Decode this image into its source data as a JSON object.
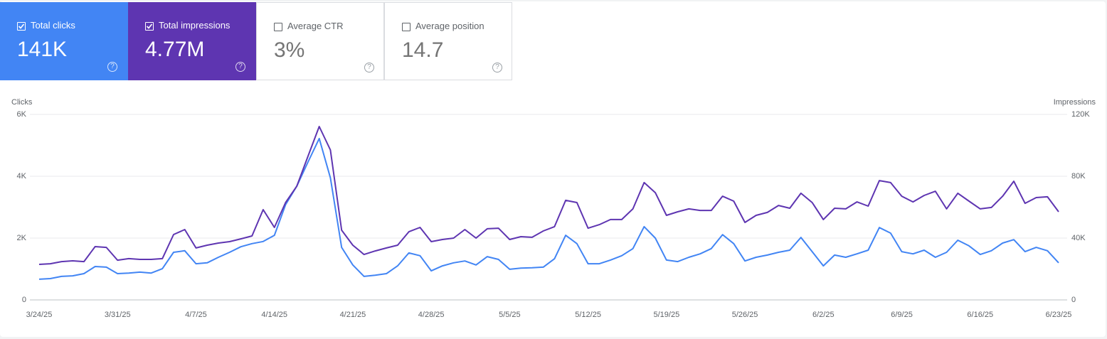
{
  "metrics": [
    {
      "label": "Total clicks",
      "value": "141K",
      "checked": true,
      "color": "#4285f4"
    },
    {
      "label": "Total impressions",
      "value": "4.77M",
      "checked": true,
      "color": "#5e35b1"
    },
    {
      "label": "Average CTR",
      "value": "3%",
      "checked": false,
      "color": "#ffffff"
    },
    {
      "label": "Average position",
      "value": "14.7",
      "checked": false,
      "color": "#ffffff"
    }
  ],
  "chart_data": {
    "type": "line",
    "y_label": "Clicks",
    "y2_label": "Impressions",
    "categories": [
      "3/24/25",
      null,
      null,
      null,
      null,
      null,
      null,
      "3/31/25",
      null,
      null,
      null,
      null,
      null,
      null,
      "4/7/25",
      null,
      null,
      null,
      null,
      null,
      null,
      "4/14/25",
      null,
      null,
      null,
      null,
      null,
      null,
      "4/21/25",
      null,
      null,
      null,
      null,
      null,
      null,
      "4/28/25",
      null,
      null,
      null,
      null,
      null,
      null,
      "5/5/25",
      null,
      null,
      null,
      null,
      null,
      null,
      "5/12/25",
      null,
      null,
      null,
      null,
      null,
      null,
      "5/19/25",
      null,
      null,
      null,
      null,
      null,
      null,
      "5/26/25",
      null,
      null,
      null,
      null,
      null,
      null,
      "6/2/25",
      null,
      null,
      null,
      null,
      null,
      null,
      "6/9/25",
      null,
      null,
      null,
      null,
      null,
      null,
      "6/16/25",
      null,
      null,
      null,
      null,
      null,
      null,
      "6/23/25"
    ],
    "series": [
      {
        "color": "#4285f4",
        "axis": "y",
        "values": [
          670,
          690,
          760,
          780,
          850,
          1080,
          1060,
          850,
          870,
          900,
          870,
          1010,
          1540,
          1590,
          1170,
          1200,
          1380,
          1540,
          1720,
          1820,
          1890,
          2090,
          3080,
          3680,
          4460,
          5220,
          3950,
          1700,
          1130,
          760,
          800,
          850,
          1100,
          1520,
          1430,
          940,
          1100,
          1200,
          1260,
          1130,
          1400,
          1310,
          990,
          1030,
          1040,
          1060,
          1330,
          2090,
          1820,
          1170,
          1170,
          1290,
          1430,
          1660,
          2370,
          2000,
          1290,
          1240,
          1380,
          1490,
          1660,
          2110,
          1820,
          1260,
          1380,
          1450,
          1540,
          1610,
          2020,
          1560,
          1100,
          1450,
          1380,
          1490,
          1610,
          2340,
          2160,
          1560,
          1490,
          1610,
          1380,
          1540,
          1930,
          1750,
          1470,
          1590,
          1840,
          1950,
          1560,
          1700,
          1590,
          1200
        ]
      },
      {
        "color": "#5e35b1",
        "axis": "y2",
        "values": [
          23000,
          23400,
          24800,
          25300,
          24800,
          34500,
          34000,
          25700,
          26700,
          26200,
          26200,
          26700,
          42300,
          45500,
          33600,
          35400,
          36800,
          37700,
          39500,
          41400,
          58400,
          46900,
          63000,
          73600,
          92900,
          112200,
          97000,
          45100,
          35400,
          29400,
          31700,
          33600,
          35400,
          44100,
          46900,
          37700,
          39100,
          40000,
          45500,
          40000,
          46000,
          46400,
          39100,
          40900,
          40500,
          44600,
          47400,
          64400,
          63000,
          46400,
          48700,
          52000,
          52000,
          58900,
          75900,
          69400,
          54700,
          57000,
          58900,
          57900,
          57900,
          67100,
          63900,
          50100,
          54700,
          56600,
          61100,
          59300,
          69000,
          63000,
          52000,
          59300,
          58900,
          63400,
          60700,
          77200,
          75900,
          67100,
          63400,
          67600,
          70300,
          58900,
          69000,
          63900,
          58900,
          59800,
          67100,
          76800,
          62500,
          66200,
          66700,
          57000
        ]
      }
    ],
    "ylim": [
      0,
      6000
    ],
    "yticks": [
      0,
      {
        "value": 2000,
        "label": "2K"
      },
      {
        "value": 4000,
        "label": "4K"
      },
      {
        "value": 6000,
        "label": "6K"
      }
    ],
    "y2lim": [
      0,
      120000
    ],
    "y2ticks": [
      0,
      {
        "value": 40000,
        "label": "40K"
      },
      {
        "value": 80000,
        "label": "80K"
      },
      {
        "value": 120000,
        "label": "120K"
      }
    ],
    "grid": true
  }
}
